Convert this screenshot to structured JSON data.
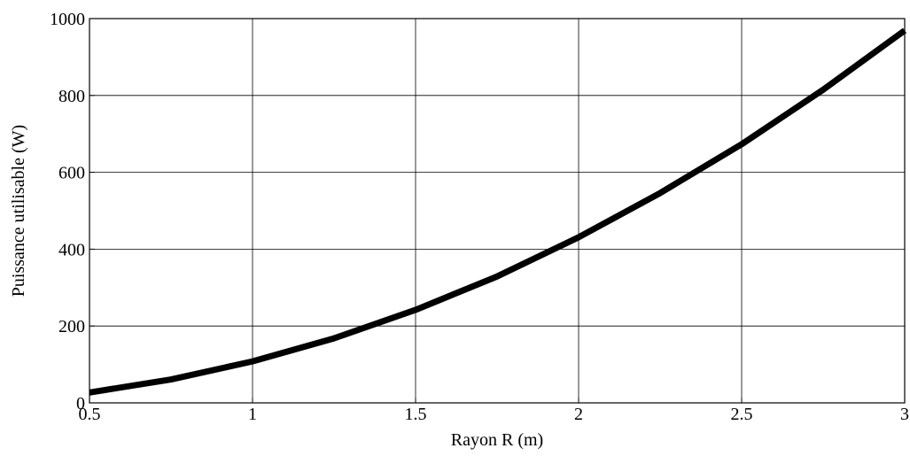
{
  "chart_data": {
    "type": "line",
    "xlabel": "Rayon R (m)",
    "ylabel": "Puissance  utilisable (W)",
    "xlim": [
      0.5,
      3
    ],
    "ylim": [
      0,
      1000
    ],
    "xticks": [
      0.5,
      1,
      1.5,
      2,
      2.5,
      3
    ],
    "xtick_labels": [
      "0.5",
      "1",
      "1.5",
      "2",
      "2.5",
      "3"
    ],
    "yticks": [
      0,
      200,
      400,
      600,
      800,
      1000
    ],
    "ytick_labels": [
      "0",
      "200",
      "400",
      "600",
      "800",
      "1000"
    ],
    "grid": true,
    "series": [
      {
        "color": "#000000",
        "x": [
          0.5,
          0.75,
          1.0,
          1.25,
          1.5,
          1.75,
          2.0,
          2.25,
          2.5,
          2.75,
          3.0
        ],
        "y": [
          27,
          61,
          108,
          168,
          242,
          329,
          431,
          546,
          673,
          815,
          969
        ]
      }
    ]
  }
}
